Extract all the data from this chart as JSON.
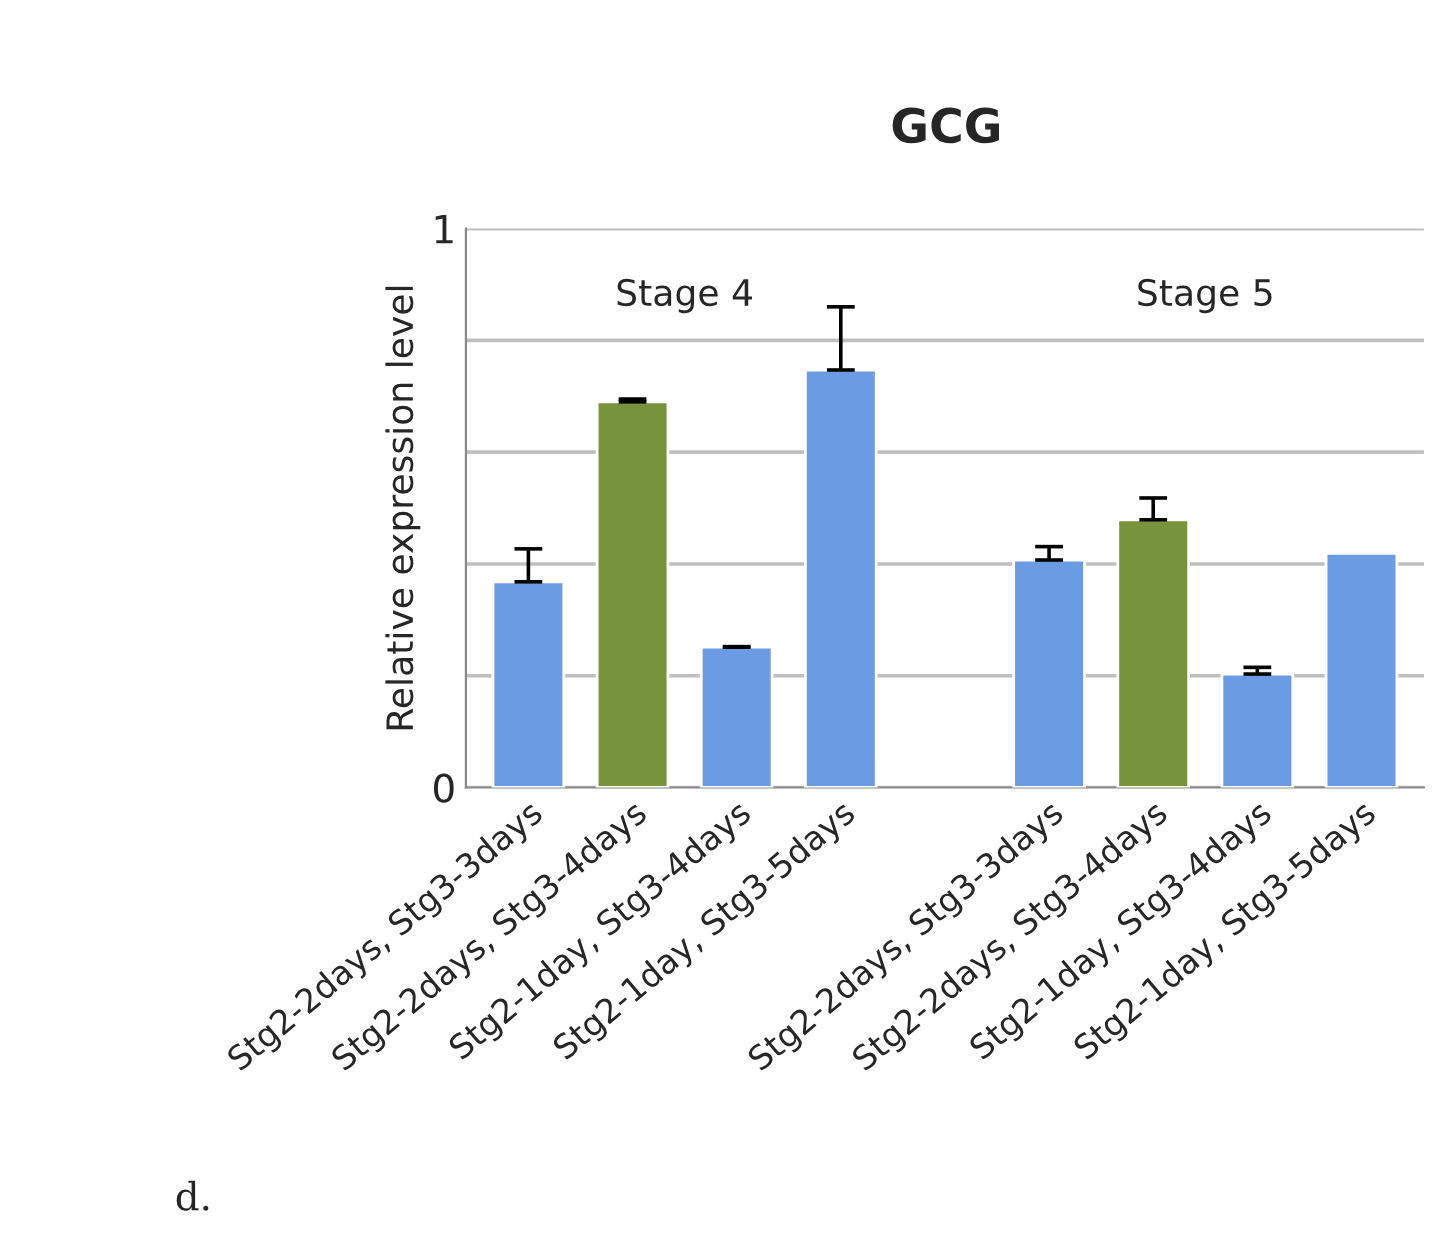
{
  "chart_data": {
    "type": "bar",
    "title": "GCG",
    "ylabel": "Relative expression level",
    "categories": [
      "Stg2-2days, Stg3-3days",
      "Stg2-2days, Stg3-4days",
      "Stg2-1day, Stg3-4days",
      "Stg2-1day, Stg3-5days",
      null,
      "Stg2-2days, Stg3-3days",
      "Stg2-2days, Stg3-4days",
      "Stg2-1day, Stg3-4days",
      "Stg2-1day, Stg3-5days"
    ],
    "values": [
      0.368,
      0.69,
      0.251,
      0.747,
      null,
      0.407,
      0.479,
      0.203,
      0.419
    ],
    "errors": [
      [
        0.368,
        0.427
      ],
      [
        0.69,
        0.695
      ],
      [
        0.251,
        0.252
      ],
      [
        0.747,
        0.86
      ],
      null,
      [
        0.407,
        0.431
      ],
      [
        0.479,
        0.518
      ],
      [
        0.203,
        0.215
      ],
      null
    ],
    "colors": [
      "#6b9be3",
      "#77933c",
      "#6b9be3",
      "#6b9be3",
      "#ffffff",
      "#6b9be3",
      "#77933c",
      "#6b9be3",
      "#6b9be3"
    ],
    "ylim": [
      0,
      1
    ],
    "yticks": [
      0,
      {
        "value": 0.2,
        "label": null
      },
      {
        "value": 0.4,
        "label": null
      },
      {
        "value": 0.6,
        "label": null
      },
      {
        "value": 0.8,
        "label": null
      },
      1
    ],
    "grid": "y",
    "annotations": [
      "Stage 4",
      "Stage 5",
      "d."
    ]
  }
}
